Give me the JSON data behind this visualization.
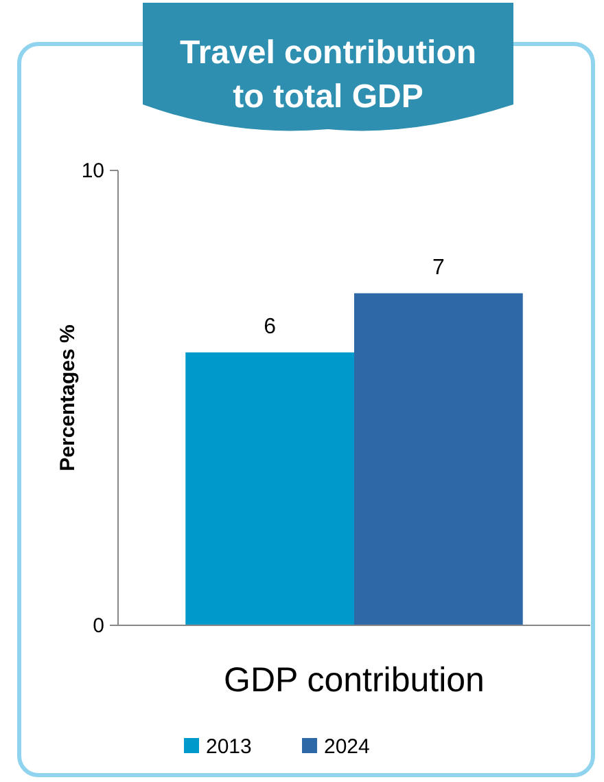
{
  "chart_data": {
    "type": "bar",
    "title": "Travel contribution to total GDP",
    "ylabel": "Percentages %",
    "categories": [
      "GDP contribution"
    ],
    "series": [
      {
        "name": "2013",
        "color": "#0099cc",
        "values": [
          6
        ],
        "value_labels": [
          "6"
        ]
      },
      {
        "name": "2024",
        "color": "#2e68a6",
        "values": [
          7.3
        ],
        "value_labels": [
          "7"
        ]
      }
    ],
    "ylim": [
      0,
      10
    ],
    "yticks": [
      0,
      10
    ],
    "grid": false,
    "legend": "bottom"
  }
}
